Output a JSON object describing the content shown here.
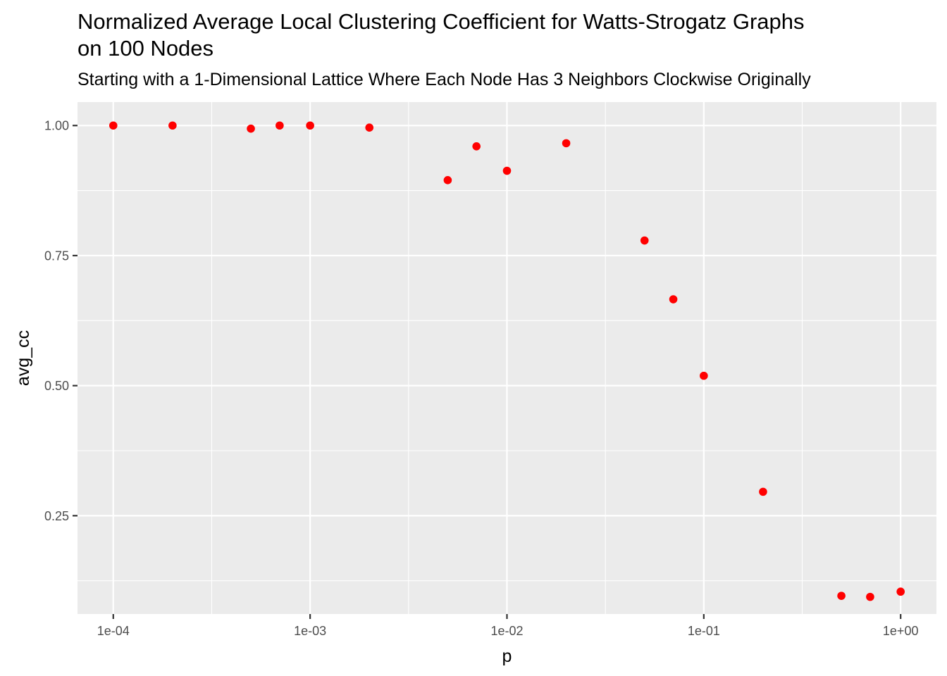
{
  "chart_data": {
    "type": "scatter",
    "title_lines": [
      "Normalized Average Local Clustering Coefficient for Watts-Strogatz Graphs",
      "on 100 Nodes"
    ],
    "subtitle": "Starting with a 1-Dimensional Lattice Where Each Node Has 3 Neighbors Clockwise Originally",
    "xlabel": "p",
    "ylabel": "avg_cc",
    "x_scale": "log10",
    "xlim": [
      6.58e-05,
      1.52
    ],
    "ylim": [
      0.061,
      1.045
    ],
    "x_ticks": [
      {
        "value": 0.0001,
        "label": "1e-04"
      },
      {
        "value": 0.001,
        "label": "1e-03"
      },
      {
        "value": 0.01,
        "label": "1e-02"
      },
      {
        "value": 0.1,
        "label": "1e-01"
      },
      {
        "value": 1,
        "label": "1e+00"
      }
    ],
    "y_ticks": [
      {
        "value": 0.25,
        "label": "0.25"
      },
      {
        "value": 0.5,
        "label": "0.50"
      },
      {
        "value": 0.75,
        "label": "0.75"
      },
      {
        "value": 1.0,
        "label": "1.00"
      }
    ],
    "grid": true,
    "point_color": "#ff0000",
    "panel_color": "#ebebeb",
    "grid_color": "#ffffff",
    "points": [
      {
        "x": 0.0001,
        "y": 1.0
      },
      {
        "x": 0.0002,
        "y": 1.0
      },
      {
        "x": 0.0005,
        "y": 0.994
      },
      {
        "x": 0.0007,
        "y": 1.0
      },
      {
        "x": 0.001,
        "y": 1.0
      },
      {
        "x": 0.002,
        "y": 0.996
      },
      {
        "x": 0.005,
        "y": 0.895
      },
      {
        "x": 0.007,
        "y": 0.96
      },
      {
        "x": 0.01,
        "y": 0.913
      },
      {
        "x": 0.02,
        "y": 0.966
      },
      {
        "x": 0.05,
        "y": 0.779
      },
      {
        "x": 0.07,
        "y": 0.666
      },
      {
        "x": 0.1,
        "y": 0.519
      },
      {
        "x": 0.2,
        "y": 0.296
      },
      {
        "x": 0.5,
        "y": 0.096
      },
      {
        "x": 0.7,
        "y": 0.094
      },
      {
        "x": 1.0,
        "y": 0.104
      }
    ]
  }
}
